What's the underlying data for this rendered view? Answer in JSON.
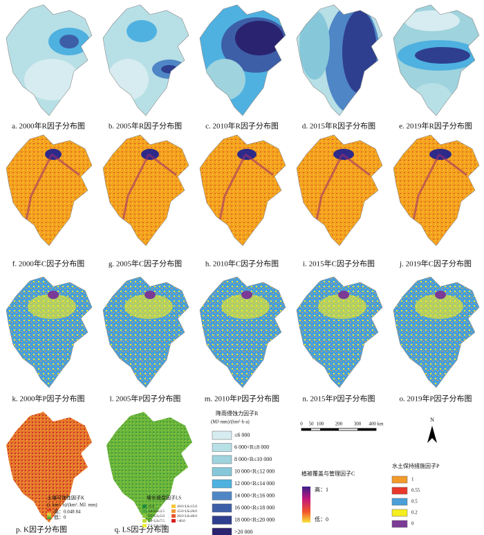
{
  "captions": [
    "a. 2000年R因子分布图",
    "b. 2005年R因子分布图",
    "c. 2010年R因子分布图",
    "d. 2015年R因子分布图",
    "e. 2019年R因子分布图",
    "f. 2000年C因子分布图",
    "g. 2005年C因子分布图",
    "h. 2010年C因子分布图",
    "i. 2015年C因子分布图",
    "j. 2019年C因子分布图",
    "k. 2000年P因子分布图",
    "l. 2005年P因子分布图",
    "m. 2010年P因子分布图",
    "n. 2015年P因子分布图",
    "o. 2019年P因子分布图",
    "p. K因子分布图",
    "q. LS因子分布图"
  ],
  "r_legend": {
    "title": "降雨侵蚀力因子R",
    "unit": "(MJ·mm)/(hm²·h·a)",
    "items": [
      {
        "label": "≤6 000",
        "color": "#d6ecf0"
      },
      {
        "label": "6 000<R≤8 000",
        "color": "#b7dfe6"
      },
      {
        "label": "8 000<R≤10 000",
        "color": "#9fd3dd"
      },
      {
        "label": "10 000<R≤12 000",
        "color": "#86c8da"
      },
      {
        "label": "12 000<R≤14 000",
        "color": "#4fb1e0"
      },
      {
        "label": "14 000<R≤16 000",
        "color": "#4f86c6"
      },
      {
        "label": "16 000<R≤18 000",
        "color": "#3d5fa8"
      },
      {
        "label": "18 000<R≤20 000",
        "color": "#2e3f8f"
      },
      {
        "label": ">20 000",
        "color": "#2a2370"
      }
    ]
  },
  "scale_bar": {
    "labels": [
      "0",
      "50",
      "100",
      "200",
      "300",
      "400 km"
    ]
  },
  "north": "N",
  "c_legend": {
    "title": "植被覆盖与管理因子C",
    "high": "高：1",
    "low": "低：0"
  },
  "p_legend": {
    "title": "水土保持措施因子P",
    "items": [
      {
        "label": "1",
        "color": "#f39a2b"
      },
      {
        "label": "0.55",
        "color": "#e8382a"
      },
      {
        "label": "0.5",
        "color": "#4a9fd8"
      },
      {
        "label": "0.2",
        "color": "#f5ee1e"
      },
      {
        "label": "0",
        "color": "#7a3a96"
      }
    ]
  },
  "k_legend": {
    "title": "土壤可蚀性因子K",
    "unit": "(t. km². h)/(km². MJ. mm)",
    "high": "高：0.048 84",
    "low": "低：0"
  },
  "ls_legend": {
    "title": "坡长坡度因子LS",
    "items": [
      {
        "label": "≤1.0",
        "color": "#1f8a3a"
      },
      {
        "label": "1.0<LS≤2.5",
        "color": "#4ea83c"
      },
      {
        "label": "2.5<LS≤5.0",
        "color": "#8cc43f"
      },
      {
        "label": "5.0<LS≤7.5",
        "color": "#c4dc3a"
      },
      {
        "label": "7.5<LS≤10.0",
        "color": "#eef03a"
      },
      {
        "label": "10.0<LS≤15.0",
        "color": "#f7c637"
      },
      {
        "label": "15.0<LS≤20.0",
        "color": "#f29733"
      },
      {
        "label": "20.0<LS≤40.0",
        "color": "#e8582c"
      },
      {
        "label": ">40.0",
        "color": "#d42020"
      }
    ]
  }
}
